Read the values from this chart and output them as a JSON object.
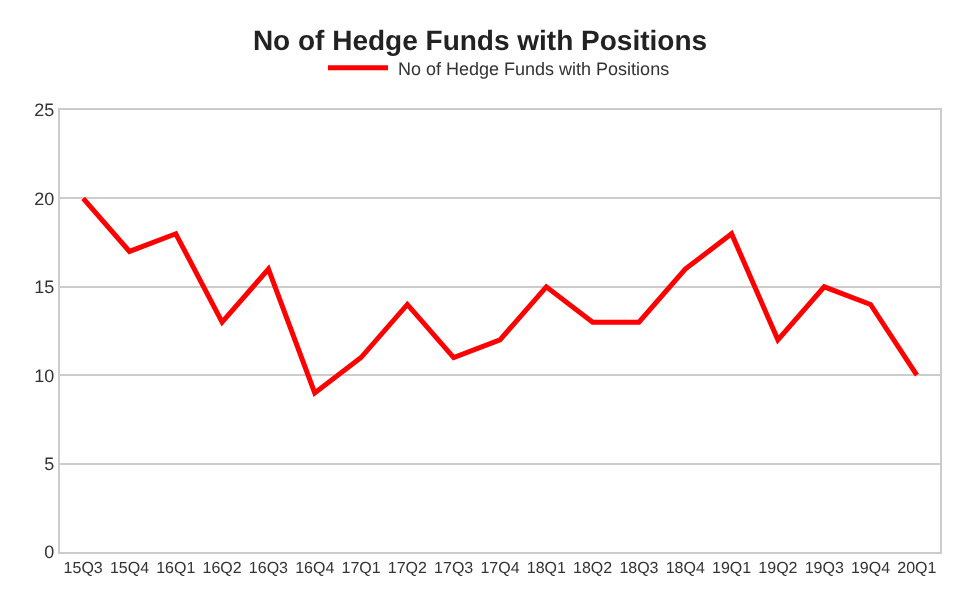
{
  "chart_data": {
    "type": "line",
    "title": "No of Hedge Funds with Positions",
    "categories": [
      "15Q3",
      "15Q4",
      "16Q1",
      "16Q2",
      "16Q3",
      "16Q4",
      "17Q1",
      "17Q2",
      "17Q3",
      "17Q4",
      "18Q1",
      "18Q2",
      "18Q3",
      "18Q4",
      "19Q1",
      "19Q2",
      "19Q3",
      "19Q4",
      "20Q1"
    ],
    "series": [
      {
        "name": "No of Hedge Funds with Positions",
        "color": "#ff0000",
        "values": [
          20,
          17,
          18,
          13,
          16,
          9,
          11,
          14,
          11,
          12,
          15,
          13,
          13,
          16,
          18,
          12,
          15,
          14,
          10
        ]
      }
    ],
    "ylim": [
      0,
      25
    ],
    "yticks": [
      0,
      5,
      10,
      15,
      20,
      25
    ],
    "grid": "y",
    "legend": "top",
    "marker": "none",
    "line_style": "solid"
  }
}
